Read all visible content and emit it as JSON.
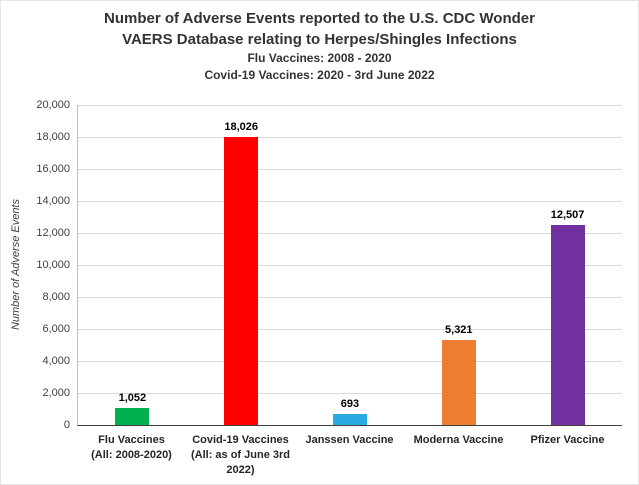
{
  "header": {
    "title_line1": "Number of Adverse Events reported to the U.S. CDC Wonder",
    "title_line2": "VAERS Database relating to Herpes/Shingles Infections",
    "subtitle_line1": "Flu Vaccines: 2008 - 2020",
    "subtitle_line2": "Covid-19 Vaccines: 2020 - 3rd June 2022"
  },
  "chart_data": {
    "type": "bar",
    "title": "Number of Adverse Events reported to the U.S. CDC Wonder VAERS Database relating to Herpes/Shingles Infections",
    "subtitle": "Flu Vaccines: 2008 - 2020 | Covid-19 Vaccines: 2020 - 3rd June 2022",
    "ylabel": "Number of Adverse Events",
    "xlabel": "",
    "ylim": [
      0,
      20000
    ],
    "ytick_step": 2000,
    "ytick_labels": [
      "0",
      "2,000",
      "4,000",
      "6,000",
      "8,000",
      "10,000",
      "12,000",
      "14,000",
      "16,000",
      "18,000",
      "20,000"
    ],
    "grid": "horizontal",
    "legend": "none",
    "categories": [
      [
        "Flu Vaccines",
        "(All: 2008-2020)"
      ],
      [
        "Covid-19 Vaccines",
        "(All: as of June 3rd",
        "2022)"
      ],
      [
        "Janssen Vaccine"
      ],
      [
        "Moderna Vaccine"
      ],
      [
        "Pfizer Vaccine"
      ]
    ],
    "values": [
      1052,
      18026,
      693,
      5321,
      12507
    ],
    "value_labels": [
      "1,052",
      "18,026",
      "693",
      "5,321",
      "12,507"
    ],
    "colors": [
      "#00B050",
      "#FF0000",
      "#29ABE2",
      "#ED7D31",
      "#7030A0"
    ],
    "gridline_color": "#d9d9d9"
  }
}
